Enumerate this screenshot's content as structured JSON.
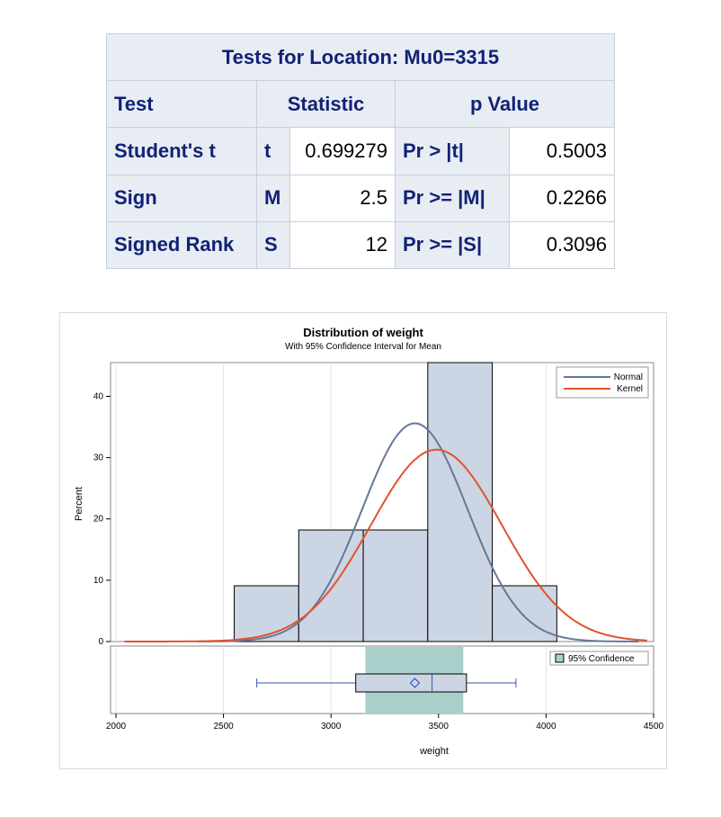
{
  "table": {
    "title": "Tests for Location: Mu0=3315",
    "headers": {
      "test": "Test",
      "statistic": "Statistic",
      "pvalue": "p Value"
    },
    "rows": [
      {
        "test": "Student's t",
        "symbol": "t",
        "stat": "0.699279",
        "plabel": "Pr > |t|",
        "p": "0.5003"
      },
      {
        "test": "Sign",
        "symbol": "M",
        "stat": "2.5",
        "plabel": "Pr >= |M|",
        "p": "0.2266"
      },
      {
        "test": "Signed Rank",
        "symbol": "S",
        "stat": "12",
        "plabel": "Pr >= |S|",
        "p": "0.3096"
      }
    ]
  },
  "chart_data": {
    "type": "bar",
    "title": "Distribution of weight",
    "subtitle": "With 95% Confidence Interval for Mean",
    "xlabel": "weight",
    "ylabel": "Percent",
    "xlim": [
      1975,
      4500
    ],
    "ylim": [
      0,
      45.5
    ],
    "xticks": [
      2000,
      2500,
      3000,
      3500,
      4000,
      4500
    ],
    "yticks": [
      0,
      10,
      20,
      30,
      40
    ],
    "bars": [
      {
        "from": 2550,
        "to": 2850,
        "value": 9.1
      },
      {
        "from": 2850,
        "to": 3150,
        "value": 18.2
      },
      {
        "from": 3150,
        "to": 3450,
        "value": 18.2
      },
      {
        "from": 3450,
        "to": 3750,
        "value": 45.5
      },
      {
        "from": 3750,
        "to": 4050,
        "value": 9.1
      }
    ],
    "curves": [
      {
        "name": "Normal",
        "color": "#667799",
        "type": "normal",
        "mean": 3390,
        "sd": 245,
        "peak": 35.6,
        "from": 2380,
        "to": 4430
      },
      {
        "name": "Kernel",
        "color": "#e0542a",
        "type": "kernel",
        "mean": 3490,
        "sd": 305,
        "peak": 31.3,
        "from": 2040,
        "to": 4470
      }
    ],
    "legend": {
      "position": "top-right",
      "entries": [
        "Normal",
        "Kernel"
      ]
    },
    "confidence": {
      "label": "95% Confidence",
      "lower": 3160,
      "upper": 3615,
      "color": "#a8cfc9"
    },
    "boxplot": {
      "min": 2655,
      "q1": 3115,
      "median": 3470,
      "mean": 3390,
      "q3": 3630,
      "max": 3860
    },
    "grid": true
  },
  "colors": {
    "bar_fill": "#ccd5e3",
    "bar_stroke": "#000000",
    "table_header_text": "#112277",
    "table_header_bg": "#e8edf3"
  }
}
